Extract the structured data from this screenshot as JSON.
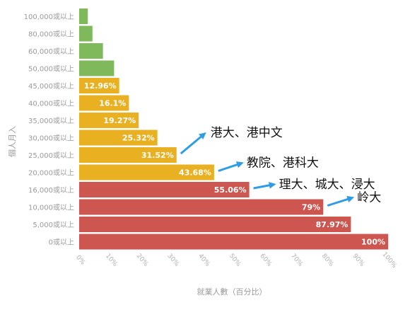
{
  "chart_data": {
    "type": "bar",
    "orientation": "horizontal",
    "ylabel": "個人月入",
    "xlabel": "就業人數（百分比）",
    "categories": [
      "100,000或以上",
      "80,000或以上",
      "60,000或以上",
      "50,000或以上",
      "45,000或以上",
      "40,000或以上",
      "35,000或以上",
      "30,000或以上",
      "25,000或以上",
      "20,000或以上",
      "16,000或以上",
      "10,000或以上",
      "5,000或以上",
      "0或以上"
    ],
    "values": [
      2.8,
      4.3,
      7.7,
      11.3,
      12.96,
      16.1,
      19.27,
      25.32,
      31.52,
      43.68,
      55.06,
      79,
      87.97,
      100
    ],
    "data_labels": [
      "",
      "",
      "",
      "",
      "12.96%",
      "16.1%",
      "19.27%",
      "25.32%",
      "31.52%",
      "43.68%",
      "55.06%",
      "79%",
      "87.97%",
      "100%"
    ],
    "bar_colors": [
      "#7fb95c",
      "#7fb95c",
      "#7fb95c",
      "#7fb95c",
      "#e9b022",
      "#e9b022",
      "#e9b022",
      "#e9b022",
      "#e9b022",
      "#e9b022",
      "#cd5750",
      "#cd5750",
      "#cd5750",
      "#cd5750"
    ],
    "xticks": [
      "0%",
      "10%",
      "20%",
      "30%",
      "40%",
      "50%",
      "60%",
      "70%",
      "80%",
      "90%",
      "100%"
    ],
    "xlim": [
      0,
      100
    ],
    "grid": false,
    "annotations": [
      {
        "text": "港大、港中文",
        "target_category": "25,000或以上"
      },
      {
        "text": "教院、港科大",
        "target_category": "20,000或以上"
      },
      {
        "text": "理大、城大、浸大",
        "target_category": "16,000或以上"
      },
      {
        "text": "岭大",
        "target_category": "10,000或以上"
      }
    ],
    "colors": {
      "green": "#7fb95c",
      "yellow": "#e9b022",
      "red": "#cd5750",
      "arrow": "#2f9de3"
    }
  }
}
